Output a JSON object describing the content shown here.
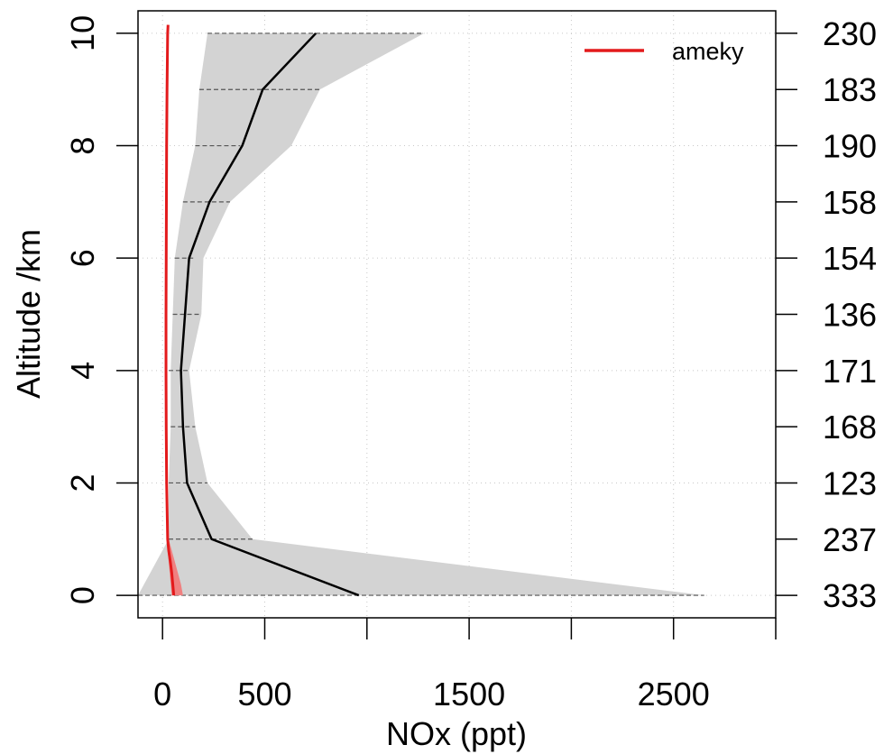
{
  "chart_data": {
    "type": "line",
    "xlabel": "NOx (ppt)",
    "ylabel": "Altitude /km",
    "xlim": [
      -120,
      3000
    ],
    "ylim": [
      -0.4,
      10.4
    ],
    "x_ticks": [
      0,
      500,
      1000,
      1500,
      2000,
      2500,
      3000
    ],
    "x_tick_labels": [
      "0",
      "500",
      "",
      "1500",
      "",
      "2500",
      ""
    ],
    "y_ticks": [
      0,
      2,
      4,
      6,
      8,
      10
    ],
    "y_tick_labels": [
      "0",
      "2",
      "4",
      "6",
      "8",
      "10"
    ],
    "grid": true,
    "legend": {
      "position": "top-right",
      "entries": [
        {
          "name": "ameky",
          "color": "#e31a1c"
        }
      ]
    },
    "altitude_levels": [
      0,
      1,
      2,
      3,
      4,
      5,
      6,
      7,
      8,
      9,
      10
    ],
    "sample_counts": [
      "333",
      "237",
      "123",
      "168",
      "171",
      "136",
      "154",
      "158",
      "190",
      "183",
      "230"
    ],
    "observed_median": [
      960,
      240,
      120,
      100,
      90,
      110,
      130,
      230,
      390,
      490,
      750
    ],
    "observed_shade_low": [
      -120,
      30,
      30,
      40,
      40,
      50,
      60,
      100,
      160,
      180,
      220
    ],
    "observed_shade_high": [
      2650,
      440,
      220,
      160,
      130,
      190,
      200,
      330,
      630,
      770,
      1280
    ],
    "observed_whisker_low": [
      -120,
      30,
      30,
      40,
      30,
      50,
      60,
      100,
      160,
      180,
      220
    ],
    "observed_whisker_high": [
      2650,
      440,
      220,
      160,
      130,
      190,
      150,
      330,
      380,
      770,
      1280
    ],
    "model_altitude": [
      0,
      0.2,
      0.4,
      0.6,
      0.8,
      1,
      2,
      3,
      4,
      5,
      6,
      7,
      8,
      9,
      10,
      10.15
    ],
    "model_values": [
      55,
      50,
      45,
      38,
      30,
      25,
      20,
      18,
      17,
      17,
      18,
      19,
      20,
      22,
      25,
      27
    ],
    "model_band_low": [
      45,
      40,
      35,
      30,
      25,
      20
    ],
    "model_band_high": [
      100,
      90,
      75,
      60,
      45,
      30
    ],
    "colors": {
      "observed_line": "#000000",
      "observed_shade": "#d3d3d3",
      "model_line": "#e31a1c",
      "model_band": "#f08080"
    }
  }
}
